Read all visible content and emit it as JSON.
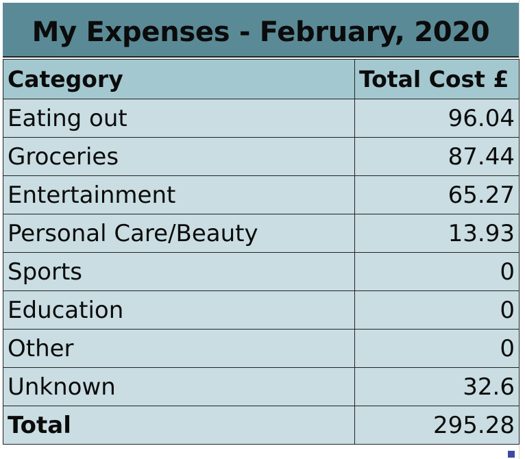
{
  "title": "My Expenses - February, 2020",
  "table": {
    "headers": [
      "Category",
      "Total Cost £"
    ],
    "rows": [
      {
        "category": "Eating out",
        "cost": "96.04"
      },
      {
        "category": "Groceries",
        "cost": "87.44"
      },
      {
        "category": "Entertainment",
        "cost": "65.27"
      },
      {
        "category": "Personal Care/Beauty",
        "cost": "13.93"
      },
      {
        "category": "Sports",
        "cost": "0"
      },
      {
        "category": "Education",
        "cost": "0"
      },
      {
        "category": "Other",
        "cost": "0"
      },
      {
        "category": "Unknown",
        "cost": "32.6"
      }
    ],
    "total": {
      "label": "Total",
      "cost": "295.28"
    }
  },
  "colors": {
    "title_background": "#5a8a96",
    "header_background": "#a4c8cf",
    "cell_background": "#c9dde2",
    "selection_handle": "#3b4aa8"
  }
}
